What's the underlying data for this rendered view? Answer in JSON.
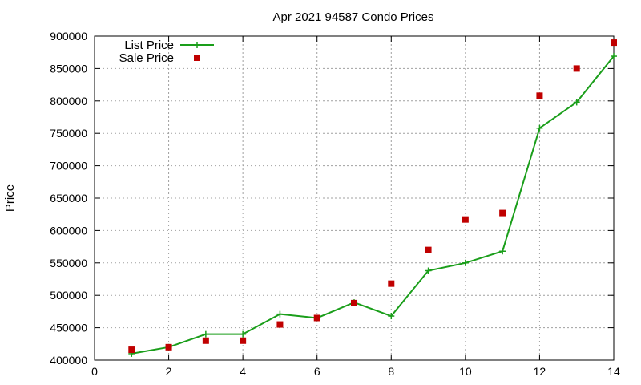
{
  "chart_data": {
    "type": "line",
    "title": "Apr 2021 94587 Condo Prices",
    "xlabel": "",
    "ylabel": "Price",
    "xlim": [
      0,
      14
    ],
    "ylim": [
      400000,
      900000
    ],
    "x_ticks": [
      0,
      2,
      4,
      6,
      8,
      10,
      12,
      14
    ],
    "y_ticks": [
      400000,
      450000,
      500000,
      550000,
      600000,
      650000,
      700000,
      750000,
      800000,
      850000,
      900000
    ],
    "grid": true,
    "legend_position": "top-left",
    "series": [
      {
        "name": "List Price",
        "style": "lines+points",
        "color": "#1a9e1a",
        "x": [
          1,
          2,
          3,
          4,
          5,
          6,
          7,
          8,
          9,
          10,
          11,
          12,
          13,
          14
        ],
        "values": [
          410000,
          420000,
          440000,
          440000,
          471000,
          465000,
          489000,
          468000,
          538000,
          550000,
          568000,
          758000,
          798000,
          869000
        ]
      },
      {
        "name": "Sale Price",
        "style": "points",
        "color": "#c00000",
        "x": [
          1,
          2,
          3,
          4,
          5,
          6,
          7,
          8,
          9,
          10,
          11,
          12,
          13,
          14
        ],
        "values": [
          416000,
          420000,
          430000,
          430000,
          455000,
          465000,
          488000,
          518000,
          570000,
          617000,
          627000,
          808000,
          850000,
          890000
        ]
      }
    ]
  }
}
